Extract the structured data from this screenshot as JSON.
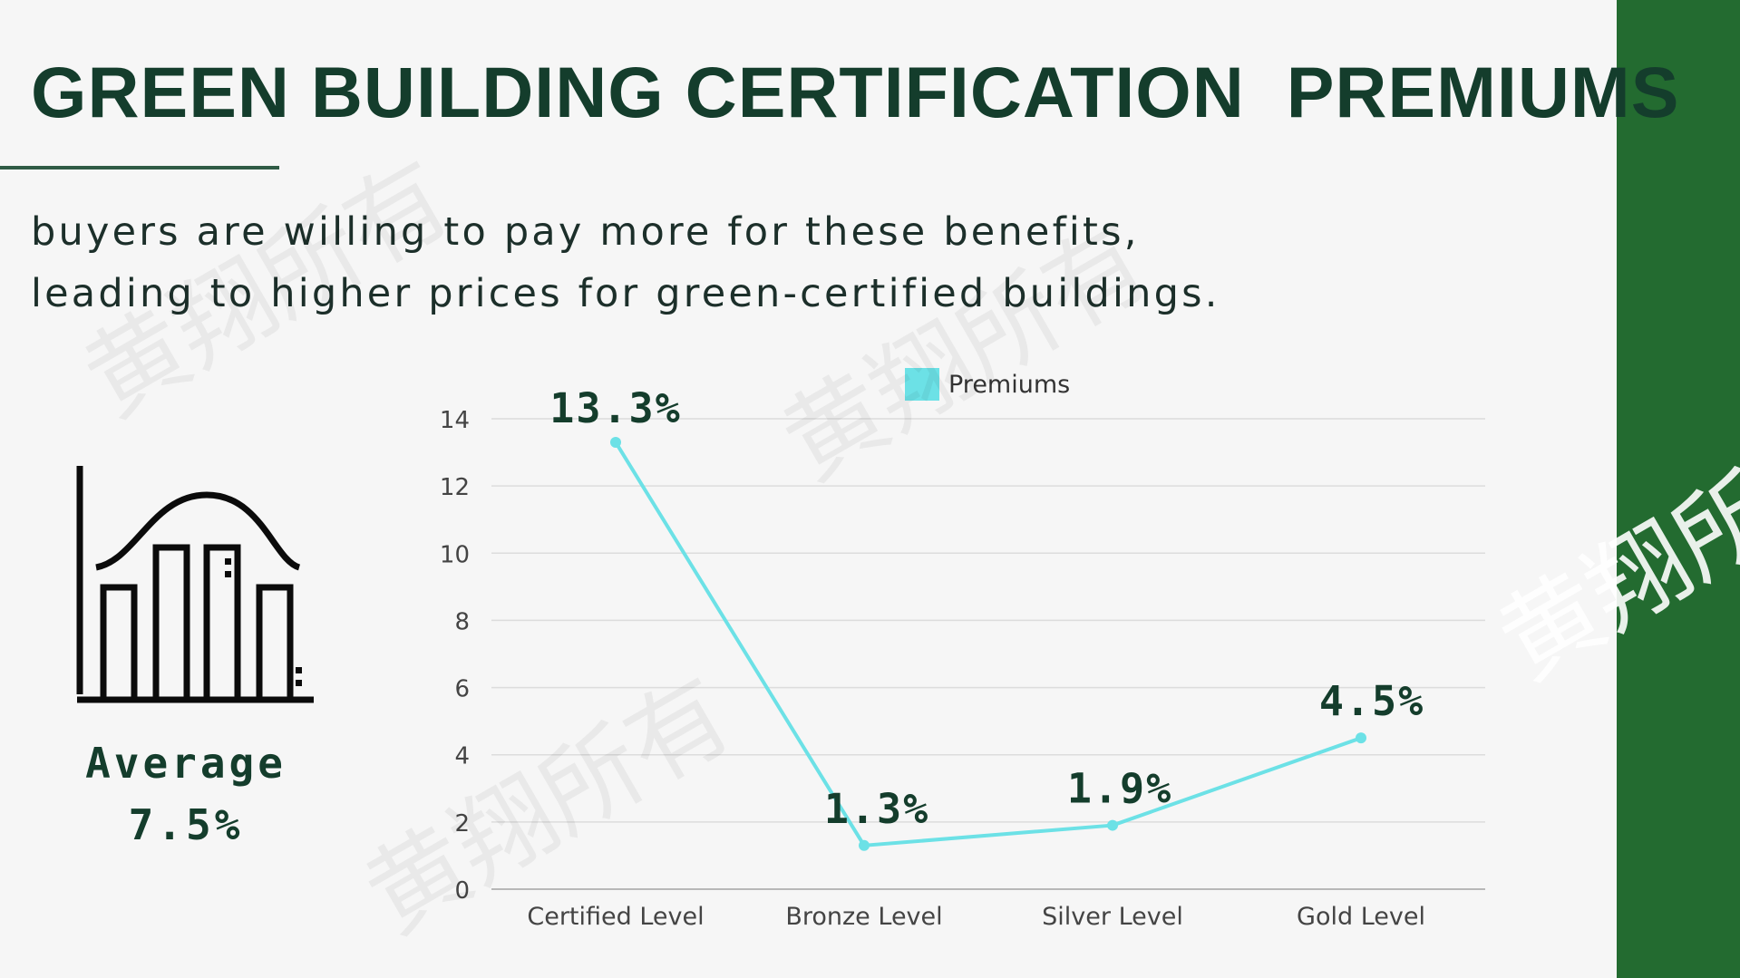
{
  "slide": {
    "title": "GREEN BUILDING CERTIFICATION  PREMIUMS",
    "subtitle_lines": [
      "buyers are willing to pay more for these benefits,",
      "leading to higher prices for green-certified buildings."
    ],
    "average": {
      "label": "Average",
      "value": "7.5%"
    },
    "watermark_text": "黄翔所有",
    "colors": {
      "title": "#143d2c",
      "accent_band": "#236b30",
      "series": "#6ce1e6"
    }
  },
  "chart_data": {
    "type": "line",
    "categories": [
      "Certified Level",
      "Bronze Level",
      "Silver Level",
      "Gold Level"
    ],
    "series": [
      {
        "name": "Premiums",
        "values": [
          13.3,
          1.3,
          1.9,
          4.5
        ],
        "labels": [
          "13.3%",
          "1.3%",
          "1.9%",
          "4.5%"
        ]
      }
    ],
    "ylim": [
      0,
      14
    ],
    "yticks": [
      0,
      2,
      4,
      6,
      8,
      10,
      12,
      14
    ],
    "grid": true,
    "legend": "top-center",
    "title": "",
    "xlabel": "",
    "ylabel": ""
  }
}
